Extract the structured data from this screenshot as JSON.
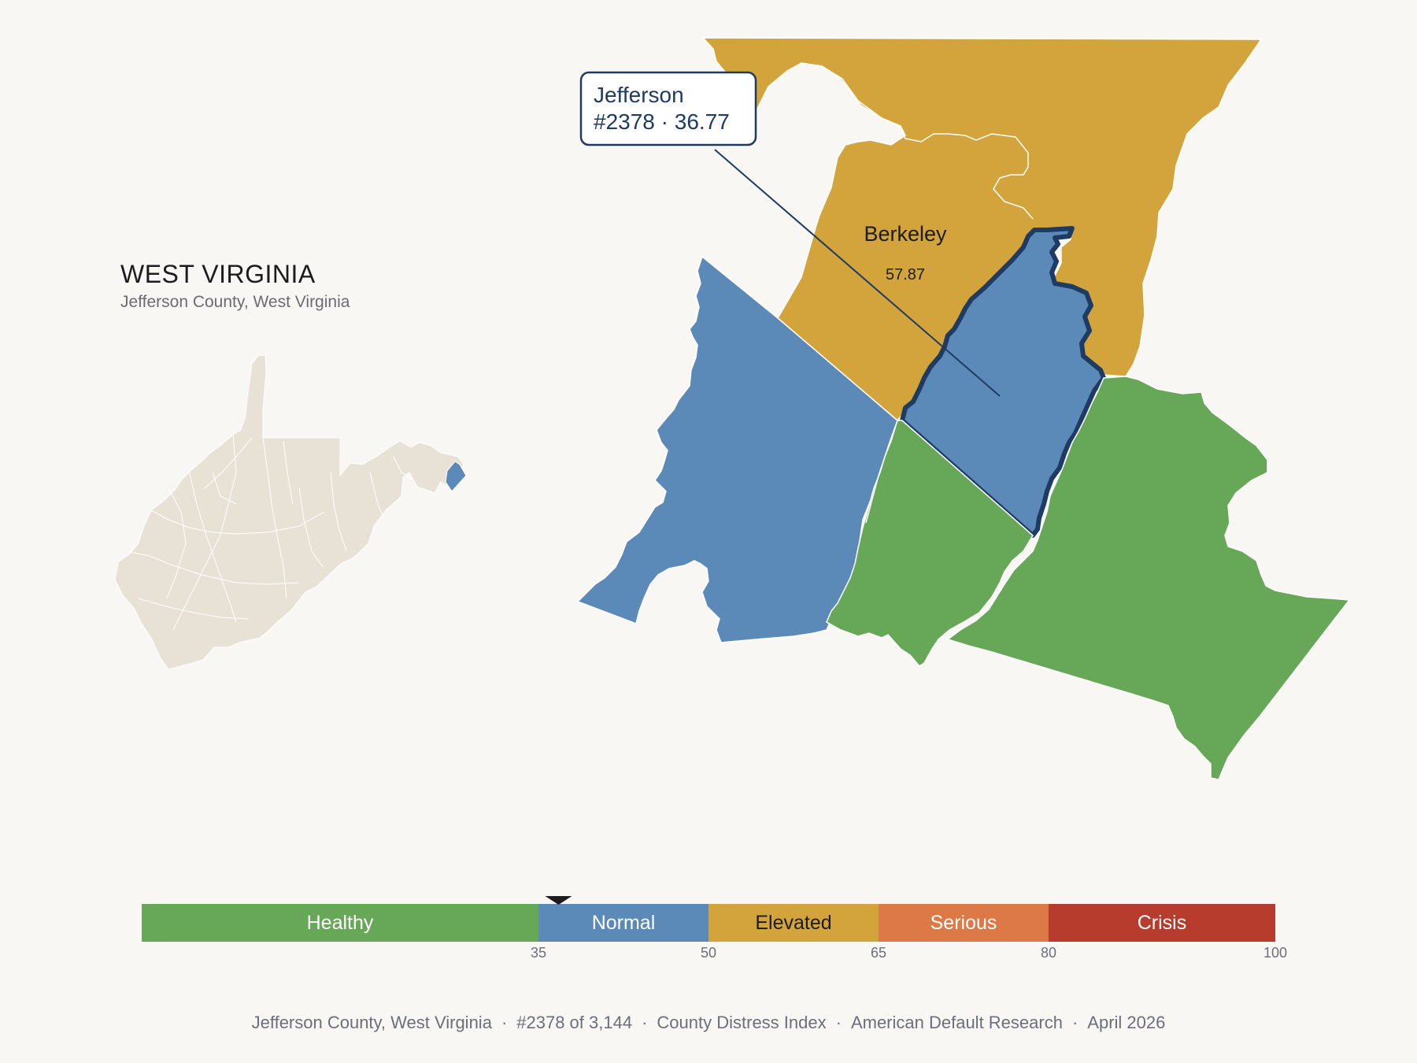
{
  "header": {
    "state": "WEST VIRGINIA",
    "subtitle": "Jefferson County, West Virginia"
  },
  "map": {
    "selected_county": "Jefferson",
    "callout_line1": "Jefferson",
    "callout_line2": "#2378 · 36.77",
    "neighbor_label": "Berkeley",
    "neighbor_value": "57.87",
    "colors": {
      "healthy": "#67a758",
      "normal": "#5b89b8",
      "elevated": "#d4a43c",
      "serious": "#dd7847",
      "crisis": "#b83c2d",
      "base": "#e8e2d6",
      "outline": "#1d3b63"
    }
  },
  "scale": {
    "marker_value": 36.77,
    "bands": [
      {
        "label": "Healthy",
        "from": 0,
        "to": 35,
        "color": "#67a758",
        "text": "#ffffff"
      },
      {
        "label": "Normal",
        "from": 35,
        "to": 50,
        "color": "#5b89b8",
        "text": "#ffffff"
      },
      {
        "label": "Elevated",
        "from": 50,
        "to": 65,
        "color": "#d4a43c",
        "text": "#1c1c1c"
      },
      {
        "label": "Serious",
        "from": 65,
        "to": 80,
        "color": "#dd7847",
        "text": "#ffffff"
      },
      {
        "label": "Crisis",
        "from": 80,
        "to": 100,
        "color": "#b83c2d",
        "text": "#ffffff"
      }
    ],
    "ticks": [
      "35",
      "50",
      "65",
      "80",
      "100"
    ]
  },
  "footer": {
    "county": "Jefferson County, West Virginia",
    "rank": "#2378 of 3,144",
    "index": "County Distress Index",
    "org": "American Default Research",
    "date": "April 2026"
  }
}
